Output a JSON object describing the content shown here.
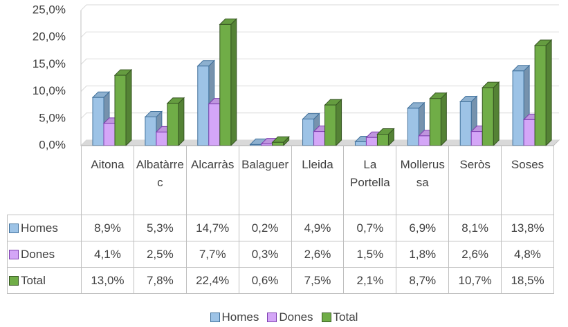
{
  "chart_data": {
    "type": "bar3d",
    "categories": [
      "Aitona",
      "Albatàrrec",
      "Alcarràs",
      "Balaguer",
      "Lleida",
      "La Portella",
      "Mollerussa",
      "Seròs",
      "Soses"
    ],
    "series": [
      {
        "name": "Homes",
        "color": "#9dc3e6",
        "values": [
          8.9,
          5.3,
          14.7,
          0.2,
          4.9,
          0.7,
          6.9,
          8.1,
          13.8
        ],
        "value_labels": [
          "8,9%",
          "5,3%",
          "14,7%",
          "0,2%",
          "4,9%",
          "0,7%",
          "6,9%",
          "8,1%",
          "13,8%"
        ]
      },
      {
        "name": "Dones",
        "color": "#d4a6f7",
        "values": [
          4.1,
          2.5,
          7.7,
          0.3,
          2.6,
          1.5,
          1.8,
          2.6,
          4.8
        ],
        "value_labels": [
          "4,1%",
          "2,5%",
          "7,7%",
          "0,3%",
          "2,6%",
          "1,5%",
          "1,8%",
          "2,6%",
          "4,8%"
        ]
      },
      {
        "name": "Total",
        "color": "#70ad47",
        "values": [
          13.0,
          7.8,
          22.4,
          0.6,
          7.5,
          2.1,
          8.7,
          10.7,
          18.5
        ],
        "value_labels": [
          "13,0%",
          "7,8%",
          "22,4%",
          "0,6%",
          "7,5%",
          "2,1%",
          "8,7%",
          "10,7%",
          "18,5%"
        ]
      }
    ],
    "ylim": [
      0,
      25
    ],
    "yticks": [
      {
        "value": 0,
        "label": "0,0%"
      },
      {
        "value": 5,
        "label": "5,0%"
      },
      {
        "value": 10,
        "label": "10,0%"
      },
      {
        "value": 15,
        "label": "15,0%"
      },
      {
        "value": 20,
        "label": "20,0%"
      },
      {
        "value": 25,
        "label": "25,0%"
      }
    ],
    "grid": true,
    "legend": "bottom"
  }
}
